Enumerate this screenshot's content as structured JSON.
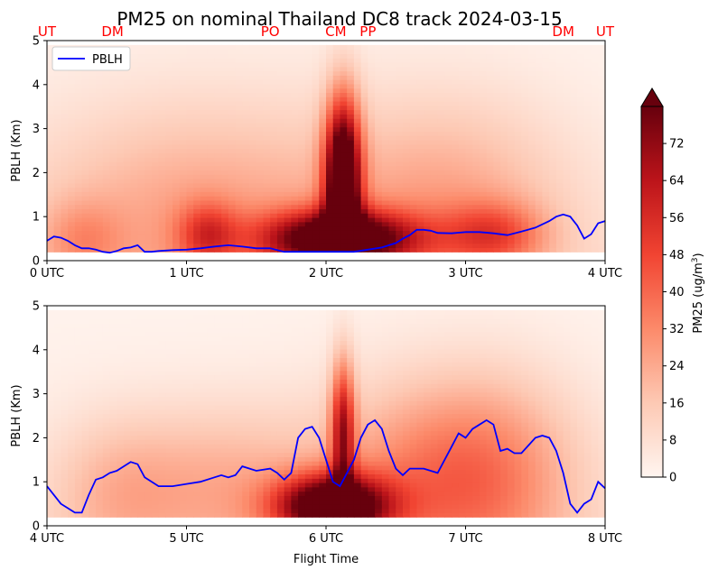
{
  "chart_data": {
    "type": "heatmap",
    "title": "PM25 on nominal Thailand DC8 track 2024-03-15",
    "xlabel": "Flight Time",
    "ylabel": "PBLH (Km)",
    "colorbar": {
      "label": "PM25 (ug/m",
      "label_sup": "3",
      "label_end": ")",
      "range": [
        0,
        80
      ],
      "ticks": [
        "0",
        "8",
        "16",
        "24",
        "32",
        "40",
        "48",
        "56",
        "64",
        "72"
      ],
      "colormap": "Reds",
      "extend": "max"
    },
    "legend": {
      "position": "upper-left",
      "entries": [
        "PBLH"
      ]
    },
    "site_labels": [
      {
        "label": "UT",
        "time": 0.0
      },
      {
        "label": "DM",
        "time": 0.47
      },
      {
        "label": "PO",
        "time": 1.6
      },
      {
        "label": "CM",
        "time": 2.07
      },
      {
        "label": "PP",
        "time": 2.3
      },
      {
        "label": "DM",
        "time": 3.7
      },
      {
        "label": "UT",
        "time": 4.0
      }
    ],
    "panels": [
      {
        "xlim": [
          0,
          4
        ],
        "ylim": [
          0,
          5
        ],
        "xticks": [
          "0 UTC",
          "1 UTC",
          "2 UTC",
          "3 UTC",
          "4 UTC"
        ],
        "yticks": [
          "0",
          "1",
          "2",
          "3",
          "4",
          "5"
        ],
        "pblh": {
          "name": "PBLH",
          "t": [
            0,
            0.05,
            0.1,
            0.15,
            0.2,
            0.25,
            0.3,
            0.35,
            0.4,
            0.45,
            0.5,
            0.55,
            0.6,
            0.65,
            0.7,
            0.75,
            0.8,
            0.9,
            1.0,
            1.1,
            1.2,
            1.3,
            1.4,
            1.5,
            1.6,
            1.7,
            1.75,
            1.8,
            1.9,
            2.0,
            2.1,
            2.2,
            2.3,
            2.4,
            2.5,
            2.55,
            2.6,
            2.65,
            2.7,
            2.75,
            2.8,
            2.9,
            3.0,
            3.1,
            3.2,
            3.3,
            3.4,
            3.5,
            3.6,
            3.65,
            3.7,
            3.75,
            3.8,
            3.85,
            3.9,
            3.95,
            4.0
          ],
          "h": [
            0.45,
            0.55,
            0.52,
            0.45,
            0.35,
            0.28,
            0.28,
            0.25,
            0.2,
            0.18,
            0.22,
            0.28,
            0.3,
            0.35,
            0.2,
            0.2,
            0.22,
            0.24,
            0.25,
            0.28,
            0.32,
            0.35,
            0.32,
            0.28,
            0.28,
            0.2,
            0.2,
            0.2,
            0.2,
            0.2,
            0.2,
            0.2,
            0.25,
            0.3,
            0.4,
            0.5,
            0.58,
            0.7,
            0.7,
            0.68,
            0.63,
            0.62,
            0.65,
            0.65,
            0.62,
            0.58,
            0.66,
            0.75,
            0.9,
            1.0,
            1.05,
            1.0,
            0.8,
            0.5,
            0.6,
            0.85,
            0.9
          ]
        },
        "pm25_blobs": [
          {
            "t": 2.12,
            "z": 1.9,
            "sx": 0.09,
            "sz": 1.25,
            "v": 95
          },
          {
            "t": 2.1,
            "z": 0.5,
            "sx": 0.38,
            "sz": 0.45,
            "v": 85
          },
          {
            "t": 1.1,
            "z": 1.0,
            "sx": 0.9,
            "sz": 1.9,
            "v": 22
          },
          {
            "t": 2.9,
            "z": 1.2,
            "sx": 0.6,
            "sz": 1.8,
            "v": 20
          },
          {
            "t": 3.2,
            "z": 0.6,
            "sx": 0.25,
            "sz": 0.5,
            "v": 30
          },
          {
            "t": 1.15,
            "z": 0.6,
            "sx": 0.15,
            "sz": 0.5,
            "v": 30
          },
          {
            "t": 0.25,
            "z": 0.5,
            "sx": 0.2,
            "sz": 0.6,
            "v": 15
          }
        ]
      },
      {
        "xlim": [
          4,
          8
        ],
        "ylim": [
          0,
          5
        ],
        "xticks": [
          "4 UTC",
          "5 UTC",
          "6 UTC",
          "7 UTC",
          "8 UTC"
        ],
        "yticks": [
          "0",
          "1",
          "2",
          "3",
          "4",
          "5"
        ],
        "pblh": {
          "name": "PBLH",
          "t": [
            4.0,
            4.05,
            4.1,
            4.15,
            4.2,
            4.25,
            4.3,
            4.35,
            4.4,
            4.45,
            4.5,
            4.55,
            4.6,
            4.65,
            4.7,
            4.8,
            4.9,
            5.0,
            5.1,
            5.2,
            5.25,
            5.3,
            5.35,
            5.4,
            5.5,
            5.6,
            5.65,
            5.7,
            5.75,
            5.8,
            5.85,
            5.9,
            5.95,
            6.0,
            6.05,
            6.1,
            6.15,
            6.2,
            6.25,
            6.3,
            6.35,
            6.4,
            6.45,
            6.5,
            6.55,
            6.6,
            6.7,
            6.8,
            6.9,
            6.95,
            7.0,
            7.05,
            7.1,
            7.15,
            7.2,
            7.25,
            7.3,
            7.35,
            7.4,
            7.5,
            7.55,
            7.6,
            7.65,
            7.7,
            7.75,
            7.8,
            7.85,
            7.9,
            7.95,
            8.0
          ],
          "h": [
            0.9,
            0.7,
            0.5,
            0.4,
            0.3,
            0.3,
            0.7,
            1.05,
            1.1,
            1.2,
            1.25,
            1.35,
            1.45,
            1.4,
            1.1,
            0.9,
            0.9,
            0.95,
            1.0,
            1.1,
            1.15,
            1.1,
            1.15,
            1.35,
            1.25,
            1.3,
            1.2,
            1.05,
            1.2,
            2.0,
            2.2,
            2.25,
            2.0,
            1.5,
            1.0,
            0.9,
            1.2,
            1.5,
            2.0,
            2.3,
            2.4,
            2.2,
            1.7,
            1.3,
            1.15,
            1.3,
            1.3,
            1.2,
            1.8,
            2.1,
            2.0,
            2.2,
            2.3,
            2.4,
            2.3,
            1.7,
            1.75,
            1.65,
            1.65,
            2.0,
            2.05,
            2.0,
            1.7,
            1.2,
            0.5,
            0.3,
            0.5,
            0.6,
            1.0,
            0.85
          ]
        },
        "pm25_blobs": [
          {
            "t": 6.12,
            "z": 2.2,
            "sx": 0.06,
            "sz": 1.1,
            "v": 55
          },
          {
            "t": 6.05,
            "z": 0.45,
            "sx": 0.28,
            "sz": 0.5,
            "v": 90
          },
          {
            "t": 6.6,
            "z": 1.0,
            "sx": 0.5,
            "sz": 1.6,
            "v": 22
          },
          {
            "t": 7.2,
            "z": 1.2,
            "sx": 0.45,
            "sz": 1.6,
            "v": 25
          },
          {
            "t": 5.3,
            "z": 0.9,
            "sx": 0.5,
            "sz": 1.3,
            "v": 18
          },
          {
            "t": 4.5,
            "z": 0.8,
            "sx": 0.35,
            "sz": 1.2,
            "v": 15
          }
        ]
      }
    ]
  }
}
